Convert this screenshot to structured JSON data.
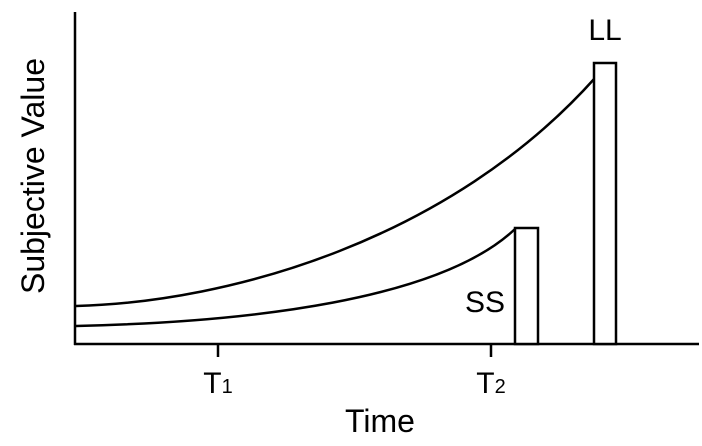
{
  "diagram": {
    "y_axis_label": "Subjective Value",
    "x_axis_label": "Time",
    "ticks": [
      {
        "main": "T",
        "sub": "1"
      },
      {
        "main": "T",
        "sub": "2"
      }
    ],
    "rewards": {
      "small_soon": "SS",
      "large_late": "LL"
    }
  }
}
